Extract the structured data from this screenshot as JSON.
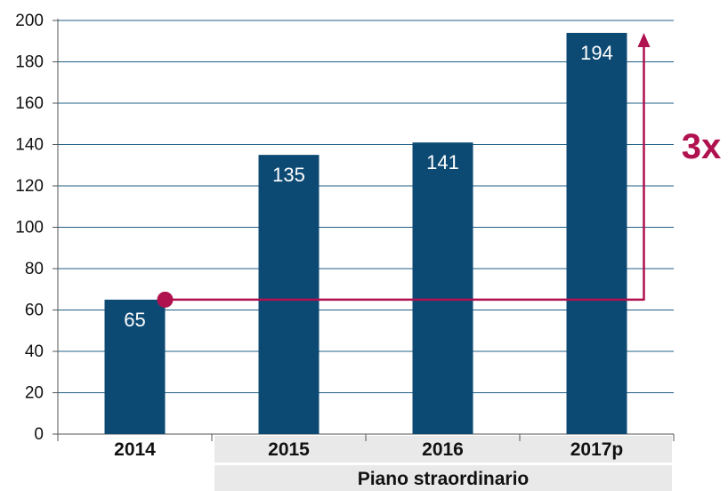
{
  "chart_data": {
    "type": "bar",
    "categories": [
      "2014",
      "2015",
      "2016",
      "2017p"
    ],
    "values": [
      65,
      135,
      141,
      194
    ],
    "data_labels": [
      "65",
      "135",
      "141",
      "194"
    ],
    "ylim": [
      0,
      200
    ],
    "yticks": [
      0,
      20,
      40,
      60,
      80,
      100,
      120,
      140,
      160,
      180,
      200
    ],
    "grid": true,
    "annotation": {
      "text": "3x",
      "from_value": 65,
      "to_value": 194
    },
    "group_band": {
      "label": "Piano straordinario",
      "categories": [
        "2015",
        "2016",
        "2017p"
      ]
    }
  },
  "colors": {
    "bar": "#0d4a73",
    "accent": "#b0124f",
    "grid": "#1f5f87",
    "band": "#e9e9e9",
    "axis": "#555555"
  }
}
